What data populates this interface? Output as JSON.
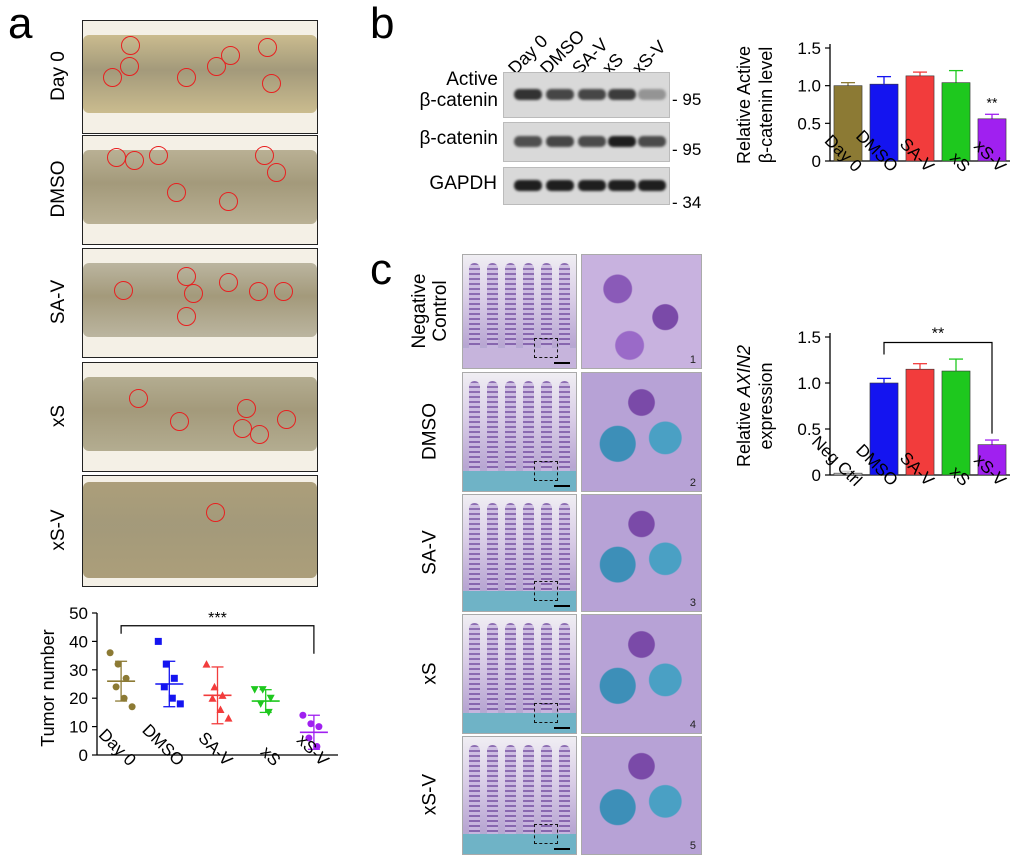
{
  "panels": {
    "a": "a",
    "b": "b",
    "c": "c"
  },
  "a_labels": [
    "Day 0",
    "DMSO",
    "SA-V",
    "xS",
    "xS-V"
  ],
  "c_labels": [
    "Negative Control",
    "DMSO",
    "SA-V",
    "xS",
    "xS-V"
  ],
  "c_label_lines": [
    [
      "Negative",
      "Control"
    ],
    [
      "DMSO"
    ],
    [
      "SA-V"
    ],
    [
      "xS"
    ],
    [
      "xS-V"
    ]
  ],
  "western": {
    "lanes": [
      "Day 0",
      "DMSO",
      "SA-V",
      "xS",
      "xS-V"
    ],
    "rows": [
      {
        "label_lines": [
          "Active",
          "β-catenin"
        ],
        "mw": "95"
      },
      {
        "label_lines": [
          "β-catenin"
        ],
        "mw": "95"
      },
      {
        "label_lines": [
          "GAPDH"
        ],
        "mw": "34"
      }
    ],
    "mw_prefix": "- "
  },
  "histo_numbers": [
    "1",
    "2",
    "3",
    "4",
    "5"
  ],
  "colors": {
    "day0": "#8c7a34",
    "dmso": "#1414f0",
    "sav": "#f23c3c",
    "xs": "#1ec81e",
    "xsv": "#a020f0",
    "circle": "#e82020"
  },
  "chart_data": [
    {
      "type": "scatter",
      "panel": "a",
      "ylabel": "Tumor number",
      "categories": [
        "Day 0",
        "DMSO",
        "SA-V",
        "xS",
        "xS-V"
      ],
      "ylim": [
        0,
        50
      ],
      "yticks": [
        0,
        10,
        20,
        30,
        40,
        50
      ],
      "means": [
        26,
        25,
        21,
        19,
        8
      ],
      "sd": [
        7,
        8,
        10,
        4,
        6
      ],
      "points": [
        [
          36,
          32,
          27,
          24,
          20,
          17
        ],
        [
          40,
          32,
          27,
          24,
          20,
          18
        ],
        [
          32,
          24,
          21,
          20,
          16,
          13
        ],
        [
          23,
          23,
          20,
          18,
          15
        ],
        [
          14,
          11,
          10,
          6,
          3
        ]
      ],
      "significance": {
        "label": "***",
        "from": "Day 0",
        "to": "xS-V"
      }
    },
    {
      "type": "bar",
      "panel": "b",
      "ylabel": "Relative Active β-catenin level",
      "ylabel_lines": [
        "Relative Active",
        "β-catenin level"
      ],
      "categories": [
        "Day 0",
        "DMSO",
        "SA-V",
        "xS",
        "xS-V"
      ],
      "values": [
        1.0,
        1.02,
        1.13,
        1.04,
        0.56
      ],
      "errors": [
        0.04,
        0.1,
        0.05,
        0.16,
        0.06
      ],
      "ylim": [
        0,
        1.5
      ],
      "yticks": [
        "0",
        "0.5",
        "1.0",
        "1.5"
      ],
      "annotation": {
        "label": "**",
        "category": "xS-V"
      }
    },
    {
      "type": "bar",
      "panel": "c",
      "ylabel_lines": [
        [
          "Relative ",
          "AXIN2",
          ""
        ],
        [
          "expression"
        ]
      ],
      "categories": [
        "Neg Ctrl",
        "DMSO",
        "SA-V",
        "xS",
        "xS-V"
      ],
      "values": [
        0.02,
        1.0,
        1.15,
        1.13,
        0.33
      ],
      "errors": [
        0.02,
        0.05,
        0.06,
        0.13,
        0.05
      ],
      "ylim": [
        0,
        1.5
      ],
      "yticks": [
        "0",
        "0.5",
        "1.0",
        "1.5"
      ],
      "significance": {
        "label": "**",
        "from": "DMSO",
        "to": "xS-V"
      }
    }
  ]
}
